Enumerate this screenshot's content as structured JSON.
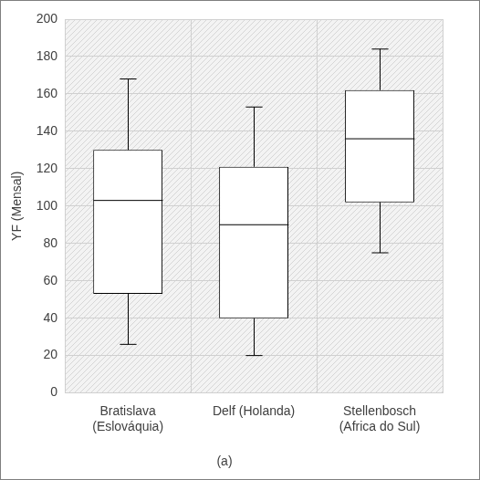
{
  "chart_data": {
    "type": "box",
    "title": "(a)",
    "ylabel": "YF (Mensal)",
    "categories": [
      [
        "Bratislava",
        "(Eslováquia)"
      ],
      [
        "Delf (Holanda)"
      ],
      [
        "Stellenbosch",
        "(Africa do Sul)"
      ]
    ],
    "values": [
      {
        "min": 26,
        "q1": 53,
        "median": 103,
        "q3": 130,
        "max": 168
      },
      {
        "min": 20,
        "q1": 40,
        "median": 90,
        "q3": 121,
        "max": 153
      },
      {
        "min": 75,
        "q1": 102,
        "median": 136,
        "q3": 162,
        "max": 184
      }
    ],
    "color": "#000000",
    "ylim": [
      0,
      200
    ],
    "yticks": [
      0,
      20,
      40,
      60,
      80,
      100,
      120,
      140,
      160,
      180,
      200
    ],
    "grid": true
  }
}
